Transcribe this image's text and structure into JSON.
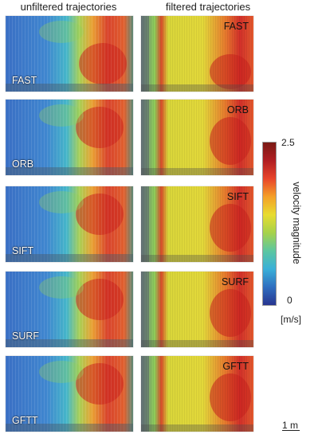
{
  "columns": {
    "left_title": "unfiltered trajectories",
    "right_title": "filtered trajectories"
  },
  "detectors": [
    "FAST",
    "ORB",
    "SIFT",
    "SURF",
    "GFTT"
  ],
  "colorbar": {
    "max_label": "2.5",
    "min_label": "0",
    "title": "velocity magnitude",
    "unit": "[m/s]",
    "colors": [
      "#283590",
      "#2f6fc0",
      "#3ab0d8",
      "#5cc7a0",
      "#a6d24a",
      "#e8dc30",
      "#f4a028",
      "#e8442a",
      "#b01e22",
      "#7a1a14"
    ]
  },
  "scale": {
    "label": "1 m"
  }
}
